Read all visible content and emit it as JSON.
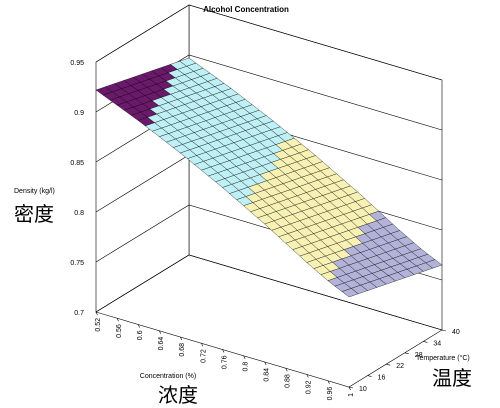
{
  "chart_data": {
    "type": "surface3d",
    "title": "Alcohol Concentration",
    "zlabel": "Density (kg/l)",
    "zlabel_cn": "密度",
    "xlabel": "Concentration (%)",
    "xlabel_cn": "浓度",
    "ylabel": "Temperature (°C)",
    "ylabel_cn": "温度",
    "zlim": [
      0.7,
      0.95
    ],
    "z_ticks": [
      "0.7",
      "0.75",
      "0.8",
      "0.85",
      "0.9",
      "0.95"
    ],
    "x_ticks": [
      "0.52",
      "0.56",
      "0.6",
      "0.64",
      "0.68",
      "0.72",
      "0.76",
      "0.8",
      "0.84",
      "0.88",
      "0.92",
      "0.96",
      "1"
    ],
    "y_ticks": [
      "10",
      "16",
      "22",
      "28",
      "34",
      "40"
    ],
    "grid": true,
    "color_bands": [
      {
        "range": [
          0.9,
          0.95
        ],
        "color": "#6b1a6b"
      },
      {
        "range": [
          0.85,
          0.9
        ],
        "color": "#bff0f5"
      },
      {
        "range": [
          0.8,
          0.85
        ],
        "color": "#f7f1b4"
      },
      {
        "range": [
          0.75,
          0.8
        ],
        "color": "#b3b3d9"
      },
      {
        "range": [
          0.7,
          0.75
        ],
        "color": "#7a1f5a"
      }
    ],
    "grid_lines_on_surface": true,
    "x": [
      0.52,
      0.56,
      0.6,
      0.64,
      0.68,
      0.72,
      0.76,
      0.8,
      0.84,
      0.88,
      0.92,
      0.96,
      1.0
    ],
    "y": [
      10,
      16,
      22,
      28,
      34,
      40
    ],
    "z_formula_note": "",
    "values": [
      [
        0.922,
        0.917,
        0.912,
        0.907,
        0.902,
        0.897
      ],
      [
        0.913,
        0.908,
        0.903,
        0.898,
        0.893,
        0.888
      ],
      [
        0.904,
        0.899,
        0.894,
        0.889,
        0.884,
        0.879
      ],
      [
        0.894,
        0.889,
        0.884,
        0.879,
        0.874,
        0.869
      ],
      [
        0.884,
        0.879,
        0.874,
        0.869,
        0.864,
        0.859
      ],
      [
        0.873,
        0.868,
        0.863,
        0.858,
        0.853,
        0.848
      ],
      [
        0.862,
        0.857,
        0.852,
        0.847,
        0.842,
        0.837
      ],
      [
        0.85,
        0.845,
        0.84,
        0.835,
        0.83,
        0.825
      ],
      [
        0.838,
        0.833,
        0.828,
        0.823,
        0.818,
        0.813
      ],
      [
        0.825,
        0.82,
        0.815,
        0.81,
        0.805,
        0.8
      ],
      [
        0.812,
        0.807,
        0.802,
        0.797,
        0.792,
        0.787
      ],
      [
        0.8,
        0.795,
        0.79,
        0.785,
        0.78,
        0.775
      ],
      [
        0.79,
        0.785,
        0.78,
        0.775,
        0.77,
        0.765
      ]
    ]
  }
}
